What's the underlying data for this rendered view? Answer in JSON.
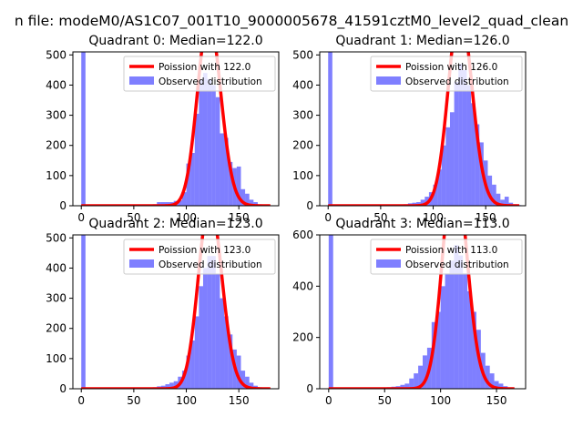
{
  "figure": {
    "suptitle": "n file: modeM0/AS1C07_001T10_9000005678_41591cztM0_level2_quad_clean",
    "colors": {
      "fit": "#ff0000",
      "hist": "#0000ff"
    }
  },
  "chart_data": [
    {
      "type": "histogram",
      "title": "Quadrant 0: Median=122.0",
      "xlim": [
        -8,
        188
      ],
      "ylim": [
        0,
        510
      ],
      "xticks": [
        0,
        50,
        100,
        150
      ],
      "yticks": [
        0,
        100,
        200,
        300,
        400,
        500
      ],
      "legend": {
        "placement": "top-right",
        "fit_label": "Poission with 122.0",
        "hist_label": "Observed distribution"
      },
      "fit": {
        "mean": 122.0,
        "xmax": 180
      },
      "bin_width": 4,
      "bins": [
        {
          "x": 0,
          "y": 510
        },
        {
          "x": 4,
          "y": 3
        },
        {
          "x": 60,
          "y": 2
        },
        {
          "x": 64,
          "y": 3
        },
        {
          "x": 68,
          "y": 5
        },
        {
          "x": 72,
          "y": 12
        },
        {
          "x": 76,
          "y": 12
        },
        {
          "x": 80,
          "y": 12
        },
        {
          "x": 84,
          "y": 12
        },
        {
          "x": 88,
          "y": 16
        },
        {
          "x": 92,
          "y": 18
        },
        {
          "x": 96,
          "y": 45
        },
        {
          "x": 100,
          "y": 140
        },
        {
          "x": 104,
          "y": 175
        },
        {
          "x": 108,
          "y": 305
        },
        {
          "x": 112,
          "y": 420
        },
        {
          "x": 116,
          "y": 440
        },
        {
          "x": 120,
          "y": 420
        },
        {
          "x": 124,
          "y": 400
        },
        {
          "x": 128,
          "y": 360
        },
        {
          "x": 132,
          "y": 240
        },
        {
          "x": 136,
          "y": 225
        },
        {
          "x": 140,
          "y": 145
        },
        {
          "x": 144,
          "y": 125
        },
        {
          "x": 148,
          "y": 130
        },
        {
          "x": 152,
          "y": 55
        },
        {
          "x": 156,
          "y": 40
        },
        {
          "x": 160,
          "y": 20
        },
        {
          "x": 164,
          "y": 12
        },
        {
          "x": 168,
          "y": 5
        },
        {
          "x": 172,
          "y": 3
        },
        {
          "x": 176,
          "y": 2
        }
      ]
    },
    {
      "type": "histogram",
      "title": "Quadrant 1: Median=126.0",
      "xlim": [
        -8,
        188
      ],
      "ylim": [
        0,
        510
      ],
      "xticks": [
        0,
        50,
        100,
        150
      ],
      "yticks": [
        0,
        100,
        200,
        300,
        400,
        500
      ],
      "legend": {
        "placement": "top-right",
        "fit_label": "Poission with 126.0",
        "hist_label": "Observed distribution"
      },
      "fit": {
        "mean": 126.0,
        "xmax": 182
      },
      "bin_width": 4,
      "bins": [
        {
          "x": 0,
          "y": 510
        },
        {
          "x": 4,
          "y": 3
        },
        {
          "x": 64,
          "y": 2
        },
        {
          "x": 68,
          "y": 3
        },
        {
          "x": 72,
          "y": 5
        },
        {
          "x": 76,
          "y": 8
        },
        {
          "x": 80,
          "y": 10
        },
        {
          "x": 84,
          "y": 12
        },
        {
          "x": 88,
          "y": 20
        },
        {
          "x": 92,
          "y": 30
        },
        {
          "x": 96,
          "y": 45
        },
        {
          "x": 100,
          "y": 70
        },
        {
          "x": 104,
          "y": 120
        },
        {
          "x": 108,
          "y": 200
        },
        {
          "x": 112,
          "y": 260
        },
        {
          "x": 116,
          "y": 310
        },
        {
          "x": 120,
          "y": 410
        },
        {
          "x": 124,
          "y": 470
        },
        {
          "x": 128,
          "y": 450
        },
        {
          "x": 132,
          "y": 400
        },
        {
          "x": 136,
          "y": 340
        },
        {
          "x": 140,
          "y": 270
        },
        {
          "x": 144,
          "y": 210
        },
        {
          "x": 148,
          "y": 150
        },
        {
          "x": 152,
          "y": 100
        },
        {
          "x": 156,
          "y": 70
        },
        {
          "x": 160,
          "y": 40
        },
        {
          "x": 164,
          "y": 20
        },
        {
          "x": 168,
          "y": 30
        },
        {
          "x": 172,
          "y": 10
        },
        {
          "x": 176,
          "y": 5
        },
        {
          "x": 180,
          "y": 2
        }
      ]
    },
    {
      "type": "histogram",
      "title": "Quadrant 2: Median=123.0",
      "xlim": [
        -8,
        188
      ],
      "ylim": [
        0,
        510
      ],
      "xticks": [
        0,
        50,
        100,
        150
      ],
      "yticks": [
        0,
        100,
        200,
        300,
        400,
        500
      ],
      "legend": {
        "placement": "top-right",
        "fit_label": "Poission with 123.0",
        "hist_label": "Observed distribution"
      },
      "fit": {
        "mean": 123.0,
        "xmax": 180
      },
      "bin_width": 4,
      "bins": [
        {
          "x": 0,
          "y": 510
        },
        {
          "x": 4,
          "y": 3
        },
        {
          "x": 60,
          "y": 2
        },
        {
          "x": 64,
          "y": 3
        },
        {
          "x": 68,
          "y": 5
        },
        {
          "x": 72,
          "y": 8
        },
        {
          "x": 76,
          "y": 10
        },
        {
          "x": 80,
          "y": 15
        },
        {
          "x": 84,
          "y": 20
        },
        {
          "x": 88,
          "y": 25
        },
        {
          "x": 92,
          "y": 40
        },
        {
          "x": 96,
          "y": 60
        },
        {
          "x": 100,
          "y": 110
        },
        {
          "x": 104,
          "y": 160
        },
        {
          "x": 108,
          "y": 240
        },
        {
          "x": 112,
          "y": 340
        },
        {
          "x": 116,
          "y": 400
        },
        {
          "x": 120,
          "y": 440
        },
        {
          "x": 124,
          "y": 440
        },
        {
          "x": 128,
          "y": 380
        },
        {
          "x": 132,
          "y": 300
        },
        {
          "x": 136,
          "y": 240
        },
        {
          "x": 140,
          "y": 180
        },
        {
          "x": 144,
          "y": 130
        },
        {
          "x": 148,
          "y": 110
        },
        {
          "x": 152,
          "y": 60
        },
        {
          "x": 156,
          "y": 40
        },
        {
          "x": 160,
          "y": 20
        },
        {
          "x": 164,
          "y": 10
        },
        {
          "x": 168,
          "y": 5
        },
        {
          "x": 172,
          "y": 3
        },
        {
          "x": 176,
          "y": 2
        }
      ]
    },
    {
      "type": "histogram",
      "title": "Quadrant 3: Median=113.0",
      "xlim": [
        -8,
        176
      ],
      "ylim": [
        0,
        600
      ],
      "xticks": [
        0,
        50,
        100,
        150
      ],
      "yticks": [
        0,
        200,
        400,
        600
      ],
      "legend": {
        "placement": "top-right",
        "fit_label": "Poission with 113.0",
        "hist_label": "Observed distribution"
      },
      "fit": {
        "mean": 113.0,
        "xmax": 166
      },
      "bin_width": 4,
      "bins": [
        {
          "x": 0,
          "y": 600
        },
        {
          "x": 4,
          "y": 3
        },
        {
          "x": 40,
          "y": 5
        },
        {
          "x": 44,
          "y": 3
        },
        {
          "x": 48,
          "y": 4
        },
        {
          "x": 52,
          "y": 6
        },
        {
          "x": 56,
          "y": 8
        },
        {
          "x": 60,
          "y": 10
        },
        {
          "x": 64,
          "y": 15
        },
        {
          "x": 68,
          "y": 20
        },
        {
          "x": 72,
          "y": 40
        },
        {
          "x": 76,
          "y": 60
        },
        {
          "x": 80,
          "y": 90
        },
        {
          "x": 84,
          "y": 130
        },
        {
          "x": 88,
          "y": 160
        },
        {
          "x": 92,
          "y": 260
        },
        {
          "x": 96,
          "y": 300
        },
        {
          "x": 100,
          "y": 400
        },
        {
          "x": 104,
          "y": 450
        },
        {
          "x": 108,
          "y": 500
        },
        {
          "x": 112,
          "y": 560
        },
        {
          "x": 116,
          "y": 520
        },
        {
          "x": 120,
          "y": 450
        },
        {
          "x": 124,
          "y": 380
        },
        {
          "x": 128,
          "y": 300
        },
        {
          "x": 132,
          "y": 230
        },
        {
          "x": 136,
          "y": 140
        },
        {
          "x": 140,
          "y": 90
        },
        {
          "x": 144,
          "y": 60
        },
        {
          "x": 148,
          "y": 30
        },
        {
          "x": 152,
          "y": 20
        },
        {
          "x": 156,
          "y": 10
        },
        {
          "x": 160,
          "y": 5
        }
      ]
    }
  ]
}
